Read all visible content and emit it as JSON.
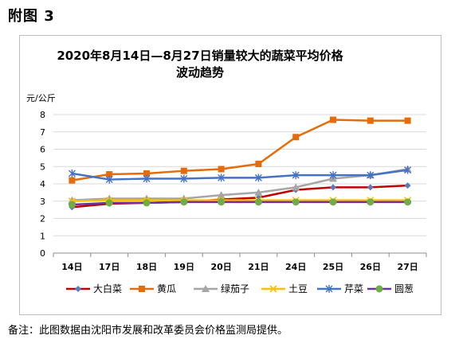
{
  "page": {
    "heading": "附图 3",
    "footnote": "备注：此图数据由沈阳市发展和改革委员会价格监测局提供。"
  },
  "chart_data": {
    "type": "line",
    "title_lines": [
      "2020年8月14日—8月27日销量较大的蔬菜平均价格",
      "波动趋势"
    ],
    "ylabel": "元/公斤",
    "xlabel": "",
    "categories": [
      "14日",
      "17日",
      "18日",
      "19日",
      "20日",
      "21日",
      "24日",
      "25日",
      "26日",
      "27日"
    ],
    "ylim": [
      0,
      8
    ],
    "yticks": [
      0,
      1,
      2,
      3,
      4,
      5,
      6,
      7,
      8
    ],
    "grid": true,
    "legend_position": "bottom",
    "series": [
      {
        "name": "大白菜",
        "color": "#c00000",
        "marker": "diamond",
        "marker_color": "#4f81bd",
        "values": [
          2.65,
          2.85,
          2.9,
          2.95,
          3.1,
          3.2,
          3.65,
          3.8,
          3.8,
          3.9
        ]
      },
      {
        "name": "黄瓜",
        "color": "#e46c0a",
        "marker": "square",
        "marker_color": "#e46c0a",
        "values": [
          4.2,
          4.55,
          4.6,
          4.75,
          4.85,
          5.15,
          6.7,
          7.7,
          7.65,
          7.65
        ]
      },
      {
        "name": "绿茄子",
        "color": "#a6a6a6",
        "marker": "triangle",
        "marker_color": "#a6a6a6",
        "values": [
          3.05,
          3.15,
          3.15,
          3.15,
          3.35,
          3.5,
          3.8,
          4.3,
          4.5,
          4.85
        ]
      },
      {
        "name": "土豆",
        "color": "#ffc000",
        "marker": "x",
        "marker_color": "#ffc000",
        "values": [
          3.0,
          3.05,
          3.05,
          3.05,
          3.05,
          3.05,
          3.05,
          3.05,
          3.05,
          3.05
        ]
      },
      {
        "name": "芹菜",
        "color": "#4472c4",
        "marker": "asterisk",
        "marker_color": "#4472c4",
        "values": [
          4.6,
          4.25,
          4.3,
          4.3,
          4.35,
          4.35,
          4.5,
          4.5,
          4.5,
          4.8
        ]
      },
      {
        "name": "圆葱",
        "color": "#7030a0",
        "marker": "circle",
        "marker_color": "#70ad47",
        "values": [
          2.8,
          2.9,
          2.9,
          2.95,
          2.95,
          2.95,
          2.95,
          2.95,
          2.95,
          2.95
        ]
      }
    ]
  }
}
